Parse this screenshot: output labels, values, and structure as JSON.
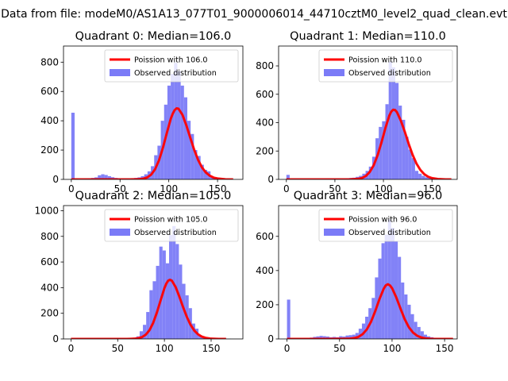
{
  "figure": {
    "title": "Data from file: modeM0/AS1A13_077T01_9000006014_44710cztM0_level2_quad_clean.evt"
  },
  "colors": {
    "hist": "#7b7bf7",
    "poisson": "#ff0000",
    "axis": "#000000"
  },
  "chart_data": [
    {
      "type": "bar",
      "title": "Quadrant 0: Median=106.0",
      "median": 106.0,
      "legend_position": "upper-right",
      "legend": {
        "line": "Poission with 106.0",
        "hist": "Observed distribution"
      },
      "xlim": [
        -8,
        176
      ],
      "ylim": [
        0,
        910
      ],
      "xticks": [
        0,
        50,
        100,
        150
      ],
      "yticks": [
        0,
        200,
        400,
        600,
        800
      ],
      "bin_width": 3.4,
      "hist": {
        "x": [
          0,
          3.4,
          6.8,
          10.2,
          13.6,
          17,
          20.4,
          23.8,
          27.2,
          30.6,
          34,
          37.4,
          40.8,
          44.2,
          47.6,
          51,
          54.4,
          57.8,
          61.2,
          64.6,
          68,
          71.4,
          74.8,
          78.2,
          81.6,
          85,
          88.4,
          91.8,
          95.2,
          98.6,
          102,
          105.4,
          108.8,
          112.2,
          115.6,
          119,
          122.4,
          125.8,
          129.2,
          132.6,
          136,
          139.4,
          142.8,
          146.2,
          149.6,
          153,
          156.4,
          159.8,
          163.2
        ],
        "y": [
          455,
          5,
          3,
          4,
          6,
          8,
          10,
          14,
          28,
          35,
          30,
          22,
          15,
          10,
          6,
          5,
          5,
          6,
          8,
          10,
          14,
          22,
          35,
          55,
          90,
          165,
          230,
          400,
          510,
          640,
          720,
          795,
          740,
          640,
          560,
          400,
          310,
          200,
          160,
          100,
          65,
          55,
          20,
          12,
          8,
          5,
          3,
          2,
          1
        ]
      },
      "poisson": {
        "x": [
          0,
          40,
          60,
          66,
          70,
          74,
          78,
          82,
          86,
          90,
          94,
          98,
          102,
          104,
          106,
          108,
          110,
          114,
          118,
          122,
          126,
          130,
          134,
          138,
          142,
          146,
          150,
          158,
          166
        ],
        "y": [
          0,
          0,
          0,
          1,
          2,
          5,
          14,
          33,
          70,
          131,
          216,
          317,
          413,
          448,
          473,
          485,
          482,
          441,
          369,
          285,
          203,
          134,
          82,
          47,
          25,
          12,
          6,
          1,
          0
        ]
      }
    },
    {
      "type": "bar",
      "title": "Quadrant 1: Median=110.0",
      "median": 110.0,
      "legend_position": "upper-right",
      "legend": {
        "line": "Poission with 110.0",
        "hist": "Observed distribution"
      },
      "xlim": [
        -8,
        176
      ],
      "ylim": [
        0,
        940
      ],
      "xticks": [
        0,
        50,
        100,
        150
      ],
      "yticks": [
        0,
        200,
        400,
        600,
        800
      ],
      "bin_width": 3.4,
      "hist": {
        "x": [
          0,
          3.4,
          6.8,
          10.2,
          13.6,
          17,
          20.4,
          23.8,
          27.2,
          30.6,
          34,
          37.4,
          40.8,
          44.2,
          47.6,
          51,
          54.4,
          57.8,
          61.2,
          64.6,
          68,
          71.4,
          74.8,
          78.2,
          81.6,
          85,
          88.4,
          91.8,
          95.2,
          98.6,
          102,
          105.4,
          108.8,
          112.2,
          115.6,
          119,
          122.4,
          125.8,
          129.2,
          132.6,
          136,
          139.4,
          142.8,
          146.2,
          149.6,
          153,
          156.4,
          159.8,
          163.2
        ],
        "y": [
          32,
          3,
          2,
          2,
          2,
          2,
          3,
          3,
          4,
          4,
          4,
          4,
          5,
          5,
          5,
          5,
          6,
          6,
          8,
          10,
          12,
          18,
          25,
          40,
          60,
          90,
          160,
          290,
          370,
          410,
          530,
          830,
          790,
          680,
          520,
          420,
          300,
          210,
          150,
          60,
          40,
          25,
          15,
          12,
          8,
          5,
          3,
          2,
          1
        ]
      },
      "poisson": {
        "x": [
          0,
          50,
          66,
          70,
          74,
          78,
          82,
          86,
          90,
          94,
          98,
          102,
          106,
          108,
          110,
          112,
          114,
          118,
          122,
          126,
          130,
          134,
          138,
          142,
          146,
          150,
          156,
          164,
          170
        ],
        "y": [
          0,
          0,
          1,
          2,
          4,
          10,
          24,
          53,
          100,
          170,
          261,
          361,
          448,
          477,
          491,
          489,
          473,
          413,
          336,
          251,
          174,
          112,
          67,
          37,
          19,
          9,
          3,
          0,
          0
        ]
      }
    },
    {
      "type": "bar",
      "title": "Quadrant 2: Median=105.0",
      "median": 105.0,
      "legend_position": "upper-right",
      "legend": {
        "line": "Poission with 105.0",
        "hist": "Observed distribution"
      },
      "xlim": [
        -8,
        184
      ],
      "ylim": [
        0,
        1040
      ],
      "xticks": [
        0,
        50,
        100,
        150
      ],
      "yticks": [
        0,
        200,
        400,
        600,
        800,
        1000
      ],
      "bin_width": 3.5,
      "hist": {
        "x": [
          0,
          3.5,
          7,
          10.5,
          14,
          17.5,
          21,
          24.5,
          28,
          31.5,
          35,
          38.5,
          42,
          45.5,
          49,
          52.5,
          56,
          59.5,
          63,
          66.5,
          70,
          73.5,
          77,
          80.5,
          84,
          87.5,
          91,
          94.5,
          98,
          101.5,
          105,
          108.5,
          112,
          115.5,
          119,
          122.5,
          126,
          129.5,
          133,
          136.5,
          140,
          143.5,
          147,
          150.5,
          154,
          157.5,
          161,
          164.5,
          168
        ],
        "y": [
          1,
          1,
          1,
          1,
          1,
          1,
          1,
          1,
          1,
          1,
          1,
          1,
          1,
          1,
          1,
          2,
          2,
          3,
          4,
          8,
          20,
          60,
          110,
          210,
          380,
          450,
          570,
          720,
          690,
          590,
          810,
          880,
          740,
          580,
          430,
          340,
          240,
          120,
          80,
          30,
          15,
          8,
          5,
          3,
          2,
          1,
          1,
          1,
          1
        ]
      },
      "poisson": {
        "x": [
          0,
          40,
          60,
          64,
          68,
          72,
          76,
          80,
          84,
          88,
          92,
          96,
          100,
          102,
          104,
          106,
          108,
          112,
          116,
          120,
          124,
          128,
          132,
          136,
          140,
          144,
          150,
          158,
          166
        ],
        "y": [
          0,
          0,
          0,
          1,
          2,
          6,
          14,
          33,
          68,
          126,
          207,
          302,
          396,
          431,
          454,
          461,
          454,
          405,
          330,
          248,
          172,
          110,
          65,
          36,
          18,
          9,
          2,
          0,
          0
        ]
      }
    },
    {
      "type": "bar",
      "title": "Quadrant 3: Median=96.0",
      "median": 96.0,
      "legend_position": "upper-right",
      "legend": {
        "line": "Poission with 96.0",
        "hist": "Observed distribution"
      },
      "xlim": [
        -8,
        162
      ],
      "ylim": [
        0,
        780
      ],
      "xticks": [
        0,
        50,
        100,
        150
      ],
      "yticks": [
        0,
        200,
        400,
        600
      ],
      "bin_width": 3.1,
      "hist": {
        "x": [
          0,
          3.1,
          6.2,
          9.3,
          12.4,
          15.5,
          18.6,
          21.7,
          24.8,
          27.9,
          31,
          34.1,
          37.2,
          40.3,
          43.4,
          46.5,
          49.6,
          52.7,
          55.8,
          58.9,
          62,
          65.1,
          68.2,
          71.3,
          74.4,
          77.5,
          80.6,
          83.7,
          86.8,
          89.9,
          93,
          96.1,
          99.2,
          102.3,
          105.4,
          108.5,
          111.6,
          114.7,
          117.8,
          120.9,
          124,
          127.1,
          130.2,
          133.3,
          136.4,
          139.5,
          142.6,
          145.7,
          148.8
        ],
        "y": [
          230,
          5,
          4,
          4,
          5,
          6,
          6,
          8,
          12,
          15,
          18,
          16,
          14,
          10,
          12,
          10,
          16,
          14,
          20,
          22,
          25,
          35,
          60,
          90,
          130,
          180,
          240,
          360,
          470,
          560,
          610,
          700,
          650,
          570,
          480,
          330,
          260,
          200,
          145,
          100,
          70,
          45,
          25,
          15,
          10,
          6,
          4,
          2,
          1
        ]
      },
      "poisson": {
        "x": [
          0,
          40,
          56,
          60,
          64,
          68,
          72,
          76,
          80,
          84,
          88,
          92,
          94,
          96,
          98,
          100,
          104,
          108,
          112,
          116,
          120,
          124,
          128,
          132,
          136,
          140,
          146,
          152,
          158
        ],
        "y": [
          0,
          0,
          1,
          2,
          5,
          12,
          28,
          56,
          101,
          163,
          233,
          293,
          313,
          320,
          313,
          297,
          243,
          178,
          116,
          68,
          37,
          18,
          8,
          3,
          1,
          0,
          0,
          0,
          0
        ]
      }
    }
  ]
}
